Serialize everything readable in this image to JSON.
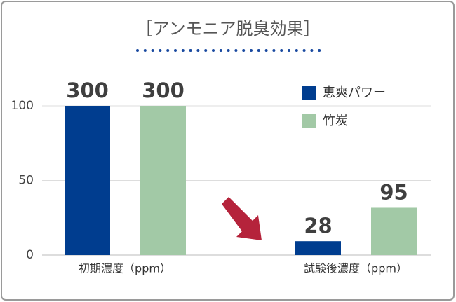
{
  "chart_data": {
    "type": "bar",
    "title": "［アンモニア脱臭効果］",
    "categories": [
      "初期濃度（ppm）",
      "試験後濃度（ppm）"
    ],
    "series": [
      {
        "name": "恵爽パワー",
        "color": "#003d8f",
        "values": [
          100,
          9.3
        ],
        "value_labels": [
          "300",
          "28"
        ]
      },
      {
        "name": "竹炭",
        "color": "#a2c9a6",
        "values": [
          100,
          31.7
        ],
        "value_labels": [
          "300",
          "95"
        ]
      }
    ],
    "ylim": [
      0,
      100
    ],
    "yticks": [
      0,
      50,
      100
    ],
    "grid": true,
    "legend": "upper right"
  }
}
